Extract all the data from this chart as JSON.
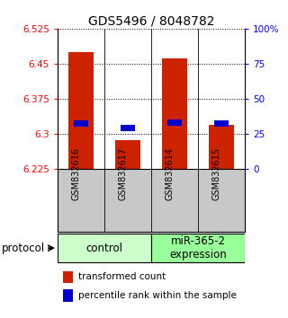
{
  "title": "GDS5496 / 8048782",
  "samples": [
    "GSM832616",
    "GSM832617",
    "GSM832614",
    "GSM832615"
  ],
  "groups": [
    {
      "name": "control",
      "color": "#ccffcc",
      "count": 2
    },
    {
      "name": "miR-365-2\nexpression",
      "color": "#99ff99",
      "count": 2
    }
  ],
  "bar_values": [
    6.475,
    6.285,
    6.462,
    6.318
  ],
  "percentile_values": [
    32,
    29,
    33,
    32
  ],
  "ymin": 6.225,
  "ymax": 6.525,
  "yticks": [
    6.225,
    6.3,
    6.375,
    6.45,
    6.525
  ],
  "ytick_labels": [
    "6.225",
    "6.3",
    "6.375",
    "6.45",
    "6.525"
  ],
  "y2ticks": [
    0,
    25,
    50,
    75,
    100
  ],
  "y2tick_labels": [
    "0",
    "25",
    "50",
    "75",
    "100%"
  ],
  "bar_color": "#cc2200",
  "percentile_color": "#0000cc",
  "bar_width": 0.55,
  "protocol_label": "protocol",
  "legend_bar_label": "transformed count",
  "legend_pct_label": "percentile rank within the sample",
  "title_fontsize": 10,
  "tick_fontsize": 7.5,
  "sample_fontsize": 7,
  "group_label_fontsize": 8.5,
  "legend_fontsize": 7.5
}
